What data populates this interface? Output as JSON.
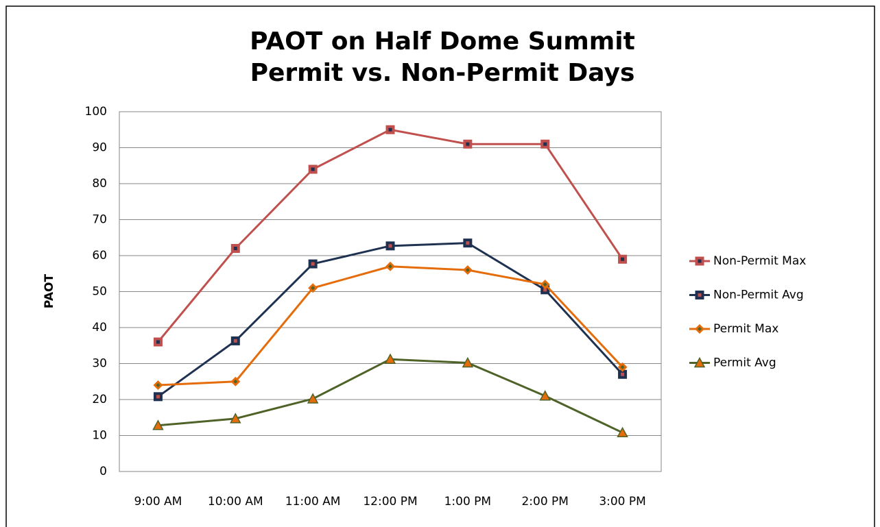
{
  "chart_data": {
    "type": "line",
    "title": "PAOT on Half Dome Summit",
    "subtitle": "Permit vs. Non-Permit  Days",
    "y_label": "PAOT",
    "categories": [
      "9:00 AM",
      "10:00 AM",
      "11:00 AM",
      "12:00 PM",
      "1:00 PM",
      "2:00 PM",
      "3:00 PM"
    ],
    "series": [
      {
        "name": "Non-Permit Max",
        "color": "#c0504d",
        "marker": "square",
        "marker_color": "#1f3150",
        "values": [
          36,
          62,
          84,
          95,
          91,
          91,
          59
        ]
      },
      {
        "name": "Non-Permit Avg",
        "color": "#1f3150",
        "marker": "square",
        "marker_color": "#c0504d",
        "values": [
          20.8,
          36.3,
          57.7,
          62.7,
          63.5,
          50.5,
          27
        ]
      },
      {
        "name": "Permit Max",
        "color": "#e46c0a",
        "marker": "diamond",
        "marker_color": "#4f6228",
        "values": [
          24,
          25,
          51,
          57,
          56,
          52,
          29
        ]
      },
      {
        "name": "Permit Avg",
        "color": "#4f6228",
        "marker": "triangle",
        "marker_color": "#e46c0a",
        "values": [
          12.8,
          14.7,
          20.2,
          31.2,
          30.2,
          21,
          10.8
        ]
      }
    ],
    "ylim": [
      0,
      100
    ],
    "yticks": [
      0,
      10,
      20,
      30,
      40,
      50,
      60,
      70,
      80,
      90,
      100
    ],
    "grid": true,
    "legend": "right"
  }
}
